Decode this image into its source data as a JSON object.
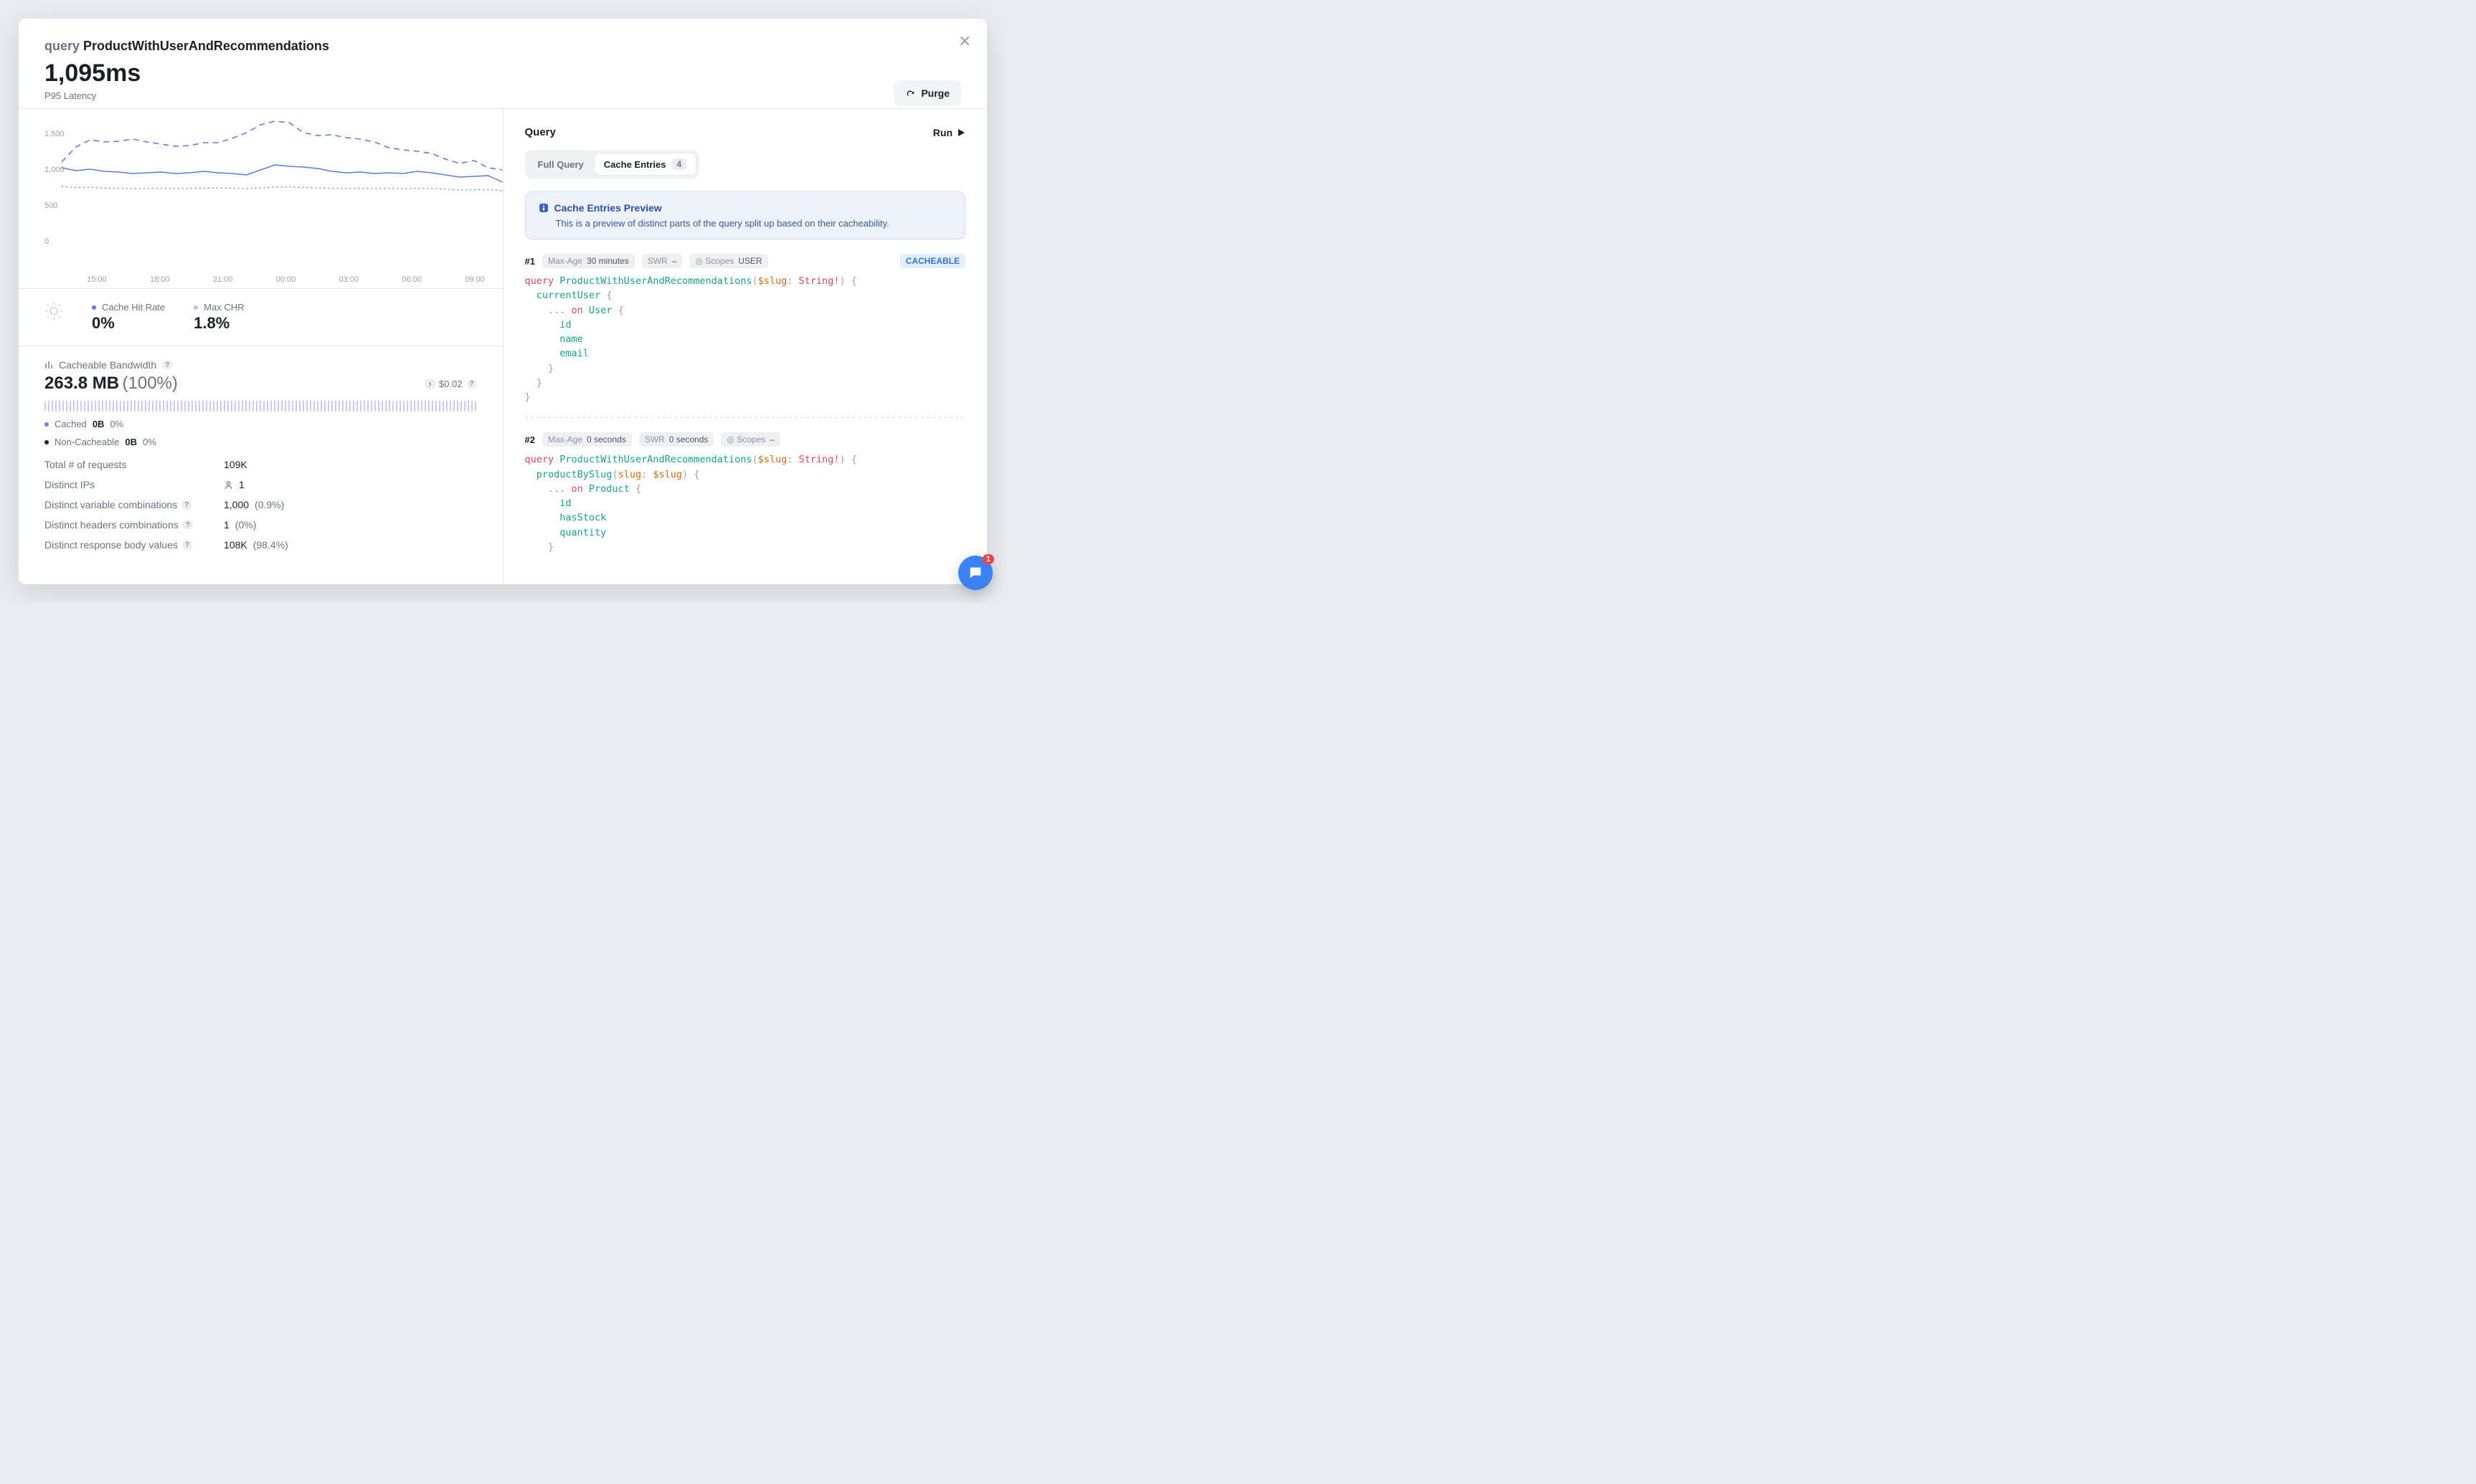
{
  "header": {
    "prefix": "query",
    "title": "ProductWithUserAndRecommendations",
    "metric_value": "1,095ms",
    "metric_label": "P95 Latency",
    "purge_label": "Purge"
  },
  "chart": {
    "type": "line",
    "ylim": [
      0,
      1800
    ],
    "yticks": [
      {
        "y": 0,
        "label": "0"
      },
      {
        "y": 500,
        "label": "500"
      },
      {
        "y": 1000,
        "label": "1,000"
      },
      {
        "y": 1500,
        "label": "1,500"
      }
    ],
    "xticks": [
      "15:00",
      "18:00",
      "21:00",
      "00:00",
      "03:00",
      "06:00",
      "09:00"
    ],
    "background_color": "#ffffff",
    "grid_color": "#f1f2f4",
    "series": [
      {
        "name": "p95",
        "color": "#5a7bd6",
        "dash": "none",
        "width": 1.5,
        "points": [
          [
            0,
            1130
          ],
          [
            1,
            1090
          ],
          [
            2,
            1110
          ],
          [
            3,
            1080
          ],
          [
            4,
            1070
          ],
          [
            5,
            1050
          ],
          [
            6,
            1060
          ],
          [
            7,
            1070
          ],
          [
            8,
            1050
          ],
          [
            9,
            1060
          ],
          [
            10,
            1080
          ],
          [
            11,
            1060
          ],
          [
            12,
            1050
          ],
          [
            13,
            1030
          ],
          [
            14,
            1100
          ],
          [
            15,
            1170
          ],
          [
            16,
            1150
          ],
          [
            17,
            1140
          ],
          [
            18,
            1120
          ],
          [
            19,
            1080
          ],
          [
            20,
            1060
          ],
          [
            21,
            1070
          ],
          [
            22,
            1050
          ],
          [
            23,
            1060
          ],
          [
            24,
            1050
          ],
          [
            25,
            1080
          ],
          [
            26,
            1060
          ],
          [
            27,
            1030
          ],
          [
            28,
            1000
          ],
          [
            29,
            1010
          ],
          [
            30,
            1020
          ],
          [
            31,
            930
          ]
        ]
      },
      {
        "name": "max",
        "color": "#5a7bd6",
        "dash": "8 6",
        "width": 1.5,
        "points": [
          [
            0,
            1210
          ],
          [
            1,
            1420
          ],
          [
            2,
            1520
          ],
          [
            3,
            1490
          ],
          [
            4,
            1500
          ],
          [
            5,
            1530
          ],
          [
            6,
            1490
          ],
          [
            7,
            1460
          ],
          [
            8,
            1430
          ],
          [
            9,
            1440
          ],
          [
            10,
            1480
          ],
          [
            11,
            1480
          ],
          [
            12,
            1540
          ],
          [
            13,
            1620
          ],
          [
            14,
            1730
          ],
          [
            15,
            1780
          ],
          [
            16,
            1760
          ],
          [
            17,
            1620
          ],
          [
            18,
            1580
          ],
          [
            19,
            1590
          ],
          [
            20,
            1550
          ],
          [
            21,
            1530
          ],
          [
            22,
            1490
          ],
          [
            23,
            1410
          ],
          [
            24,
            1380
          ],
          [
            25,
            1360
          ],
          [
            26,
            1330
          ],
          [
            27,
            1250
          ],
          [
            28,
            1190
          ],
          [
            29,
            1230
          ],
          [
            30,
            1130
          ],
          [
            31,
            1100
          ]
        ]
      },
      {
        "name": "min",
        "color": "#5a7bd6",
        "dash": "2 4",
        "width": 1.2,
        "points": [
          [
            0,
            870
          ],
          [
            1,
            855
          ],
          [
            2,
            860
          ],
          [
            3,
            846
          ],
          [
            4,
            842
          ],
          [
            5,
            838
          ],
          [
            6,
            840
          ],
          [
            7,
            843
          ],
          [
            8,
            838
          ],
          [
            9,
            841
          ],
          [
            10,
            845
          ],
          [
            11,
            848
          ],
          [
            12,
            843
          ],
          [
            13,
            838
          ],
          [
            14,
            848
          ],
          [
            15,
            861
          ],
          [
            16,
            862
          ],
          [
            17,
            855
          ],
          [
            18,
            848
          ],
          [
            19,
            843
          ],
          [
            20,
            840
          ],
          [
            21,
            843
          ],
          [
            22,
            838
          ],
          [
            23,
            841
          ],
          [
            24,
            838
          ],
          [
            25,
            842
          ],
          [
            26,
            839
          ],
          [
            27,
            832
          ],
          [
            28,
            820
          ],
          [
            29,
            824
          ],
          [
            30,
            827
          ],
          [
            31,
            808
          ]
        ]
      }
    ]
  },
  "cache_metrics": {
    "chr_label": "Cache Hit Rate",
    "chr_value": "0%",
    "maxchr_label": "Max CHR",
    "maxchr_value": "1.8%"
  },
  "bandwidth": {
    "title": "Cacheable Bandwidth",
    "value": "263.8 MB",
    "pct": "(100%)",
    "cost": "$0.02",
    "cached_label": "Cached",
    "cached_value": "0B",
    "cached_pct": "0%",
    "noncache_label": "Non-Cacheable",
    "noncache_value": "0B",
    "noncache_pct": "0%"
  },
  "stats": [
    {
      "k": "Total # of requests",
      "v": "109K",
      "help": false
    },
    {
      "k": "Distinct IPs",
      "v": "1",
      "icon": "user",
      "help": false
    },
    {
      "k": "Distinct variable combinations",
      "v": "1,000",
      "pct": "(0.9%)",
      "help": true
    },
    {
      "k": "Distinct headers combinations",
      "v": "1",
      "pct": "(0%)",
      "help": true
    },
    {
      "k": "Distinct response body values",
      "v": "108K",
      "pct": "(98.4%)",
      "help": true
    }
  ],
  "right": {
    "title": "Query",
    "run_label": "Run",
    "tabs": {
      "full": "Full Query",
      "entries": "Cache Entries",
      "entries_count": "4"
    },
    "notice_title": "Cache Entries Preview",
    "notice_desc": "This is a preview of distinct parts of the query split up based on their cacheability."
  },
  "entries": [
    {
      "index": "#1",
      "maxage": "30 minutes",
      "swr": "–",
      "scopes": "USER",
      "cacheable": true,
      "code_tokens": [
        [
          "k",
          "query "
        ],
        [
          "n",
          "ProductWithUserAndRecommendations"
        ],
        [
          "p",
          "("
        ],
        [
          "arg",
          "$slug"
        ],
        [
          "p",
          ": "
        ],
        [
          "t",
          "String!"
        ],
        [
          "p",
          ") {\n"
        ],
        [
          "p",
          "  "
        ],
        [
          "fn",
          "currentUser"
        ],
        [
          "p",
          " {\n"
        ],
        [
          "p",
          "    ... "
        ],
        [
          "k",
          "on "
        ],
        [
          "n",
          "User"
        ],
        [
          "p",
          " {\n"
        ],
        [
          "p",
          "      "
        ],
        [
          "fn",
          "id"
        ],
        [
          "p",
          "\n"
        ],
        [
          "p",
          "      "
        ],
        [
          "fn",
          "name"
        ],
        [
          "p",
          "\n"
        ],
        [
          "p",
          "      "
        ],
        [
          "fn",
          "email"
        ],
        [
          "p",
          "\n"
        ],
        [
          "p",
          "    }\n"
        ],
        [
          "p",
          "  }\n"
        ],
        [
          "p",
          "}"
        ]
      ]
    },
    {
      "index": "#2",
      "maxage": "0 seconds",
      "swr": "0 seconds",
      "scopes": "–",
      "cacheable": false,
      "code_tokens": [
        [
          "k",
          "query "
        ],
        [
          "n",
          "ProductWithUserAndRecommendations"
        ],
        [
          "p",
          "("
        ],
        [
          "arg",
          "$slug"
        ],
        [
          "p",
          ": "
        ],
        [
          "t",
          "String!"
        ],
        [
          "p",
          ") {\n"
        ],
        [
          "p",
          "  "
        ],
        [
          "fn",
          "productBySlug"
        ],
        [
          "p",
          "("
        ],
        [
          "arg",
          "slug"
        ],
        [
          "p",
          ": "
        ],
        [
          "arg",
          "$slug"
        ],
        [
          "p",
          ") {\n"
        ],
        [
          "p",
          "    ... "
        ],
        [
          "k",
          "on "
        ],
        [
          "n",
          "Product"
        ],
        [
          "p",
          " {\n"
        ],
        [
          "p",
          "      "
        ],
        [
          "fn",
          "id"
        ],
        [
          "p",
          "\n"
        ],
        [
          "p",
          "      "
        ],
        [
          "fn",
          "hasStock"
        ],
        [
          "p",
          "\n"
        ],
        [
          "p",
          "      "
        ],
        [
          "fn",
          "quantity"
        ],
        [
          "p",
          "\n"
        ],
        [
          "p",
          "    }\n"
        ]
      ]
    }
  ],
  "intercom_badge": "1",
  "colors": {
    "dot_chr": "#5a7bd6",
    "dot_maxchr": "#b6c5ee",
    "dot_cached": "#8b74f2",
    "dot_noncache": "#1b1f27"
  }
}
